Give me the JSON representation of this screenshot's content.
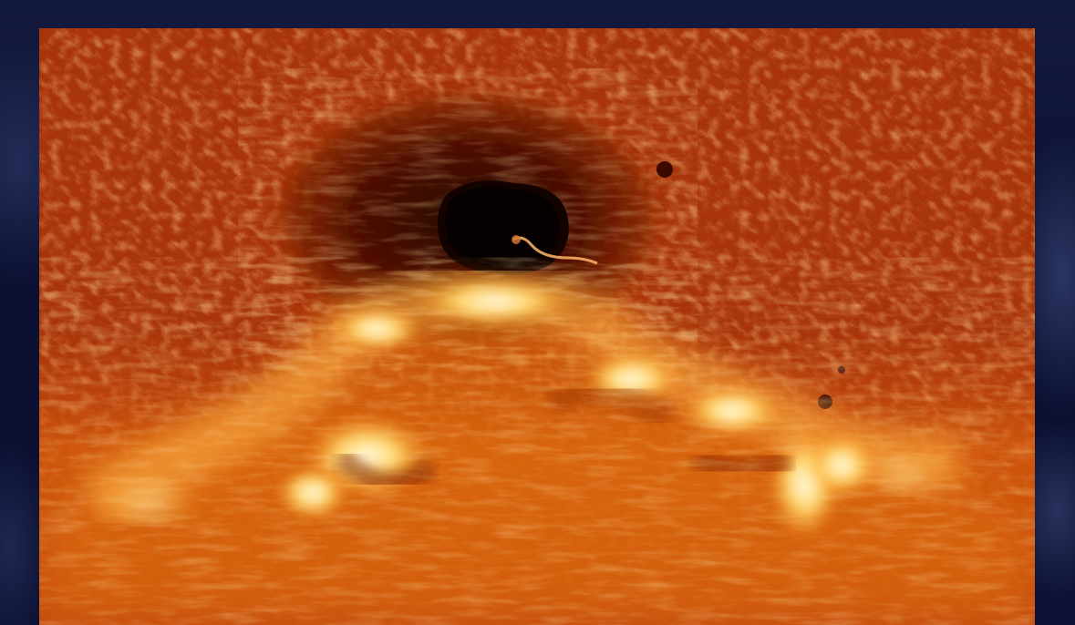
{
  "scene": {
    "subject": "solar-sunspot-and-flare-ribbons",
    "colors": {
      "background": "#0b1030",
      "photosphere": "#a8340a",
      "umbra": "#120200",
      "penumbra": "#5a1204",
      "flare_hot": "#fff6d8",
      "flare_warm": "#ff9a1a"
    }
  }
}
